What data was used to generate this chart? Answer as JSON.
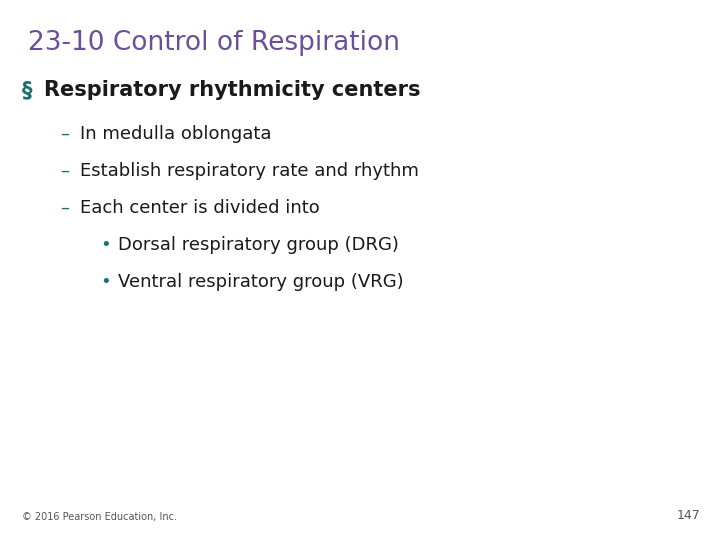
{
  "title": "23-10 Control of Respiration",
  "title_color": "#6B4F9B",
  "title_fontsize": 19,
  "background_color": "#FFFFFF",
  "text_color": "#1A1A1A",
  "dash_bullet_color": "#1A7070",
  "heading_text": "Respiratory rhythmicity centers",
  "heading_fontsize": 15,
  "square_bullet_color": "#5B6FA0",
  "dash_items": [
    "In medulla oblongata",
    "Establish respiratory rate and rhythm",
    "Each center is divided into"
  ],
  "sub_bullets": [
    "Dorsal respiratory group (DRG)",
    "Ventral respiratory group (VRG)"
  ],
  "footer_text": "© 2016 Pearson Education, Inc.",
  "footer_fontsize": 7,
  "page_number": "147",
  "page_number_fontsize": 9,
  "dash_fontsize": 13,
  "sub_bullet_fontsize": 13
}
